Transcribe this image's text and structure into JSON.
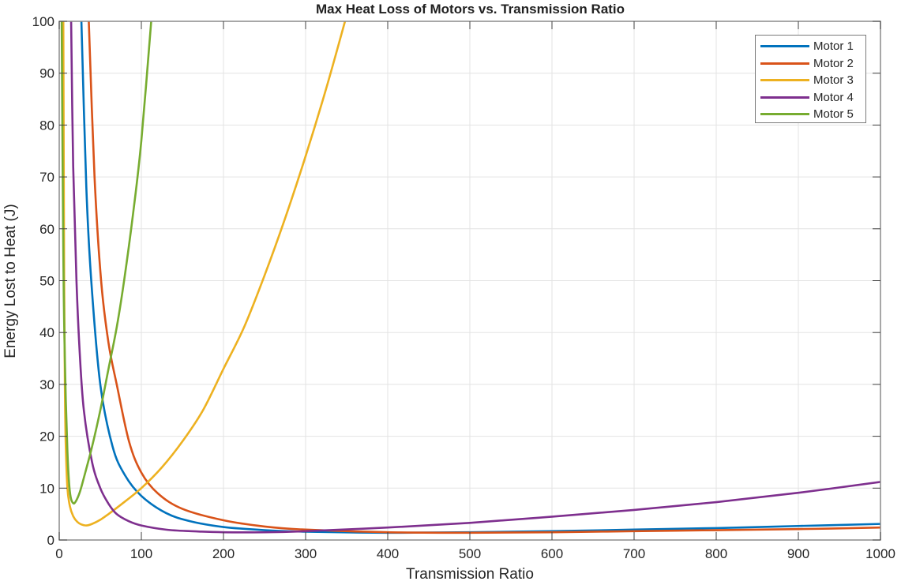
{
  "chart_data": {
    "type": "line",
    "title": "Max Heat Loss of Motors vs. Transmission Ratio",
    "xlabel": "Transmission Ratio",
    "ylabel": "Energy Lost to Heat (J)",
    "xlim": [
      0,
      1000
    ],
    "ylim": [
      0,
      100
    ],
    "xticks": [
      0,
      100,
      200,
      300,
      400,
      500,
      600,
      700,
      800,
      900,
      1000
    ],
    "yticks": [
      0,
      10,
      20,
      30,
      40,
      50,
      60,
      70,
      80,
      90,
      100
    ],
    "grid": true,
    "legend_position": "northeast",
    "series": [
      {
        "name": "Motor 1",
        "color": "#0072BD",
        "x": [
          27,
          33,
          39,
          50,
          65,
          80,
          100,
          130,
          160,
          200,
          250,
          300,
          400,
          500,
          600,
          700,
          800,
          900,
          1000
        ],
        "y": [
          100,
          68,
          50,
          30,
          18,
          12.5,
          8.5,
          5.2,
          3.6,
          2.5,
          1.9,
          1.6,
          1.4,
          1.5,
          1.7,
          2.0,
          2.3,
          2.7,
          3.1
        ]
      },
      {
        "name": "Motor 2",
        "color": "#D95319",
        "x": [
          36,
          43,
          51,
          60,
          70,
          85,
          100,
          120,
          150,
          200,
          250,
          300,
          400,
          500,
          600,
          700,
          800,
          900,
          1000
        ],
        "y": [
          100,
          70,
          50,
          38,
          30,
          19,
          13,
          9,
          6,
          3.8,
          2.6,
          2.0,
          1.5,
          1.4,
          1.5,
          1.7,
          1.9,
          2.1,
          2.4
        ]
      },
      {
        "name": "Motor 3",
        "color": "#EDB120",
        "x": [
          5,
          6,
          7,
          8,
          10,
          13,
          17,
          22,
          27,
          33,
          40,
          50,
          60,
          75,
          100,
          125,
          150,
          175,
          200,
          225,
          250,
          275,
          300,
          325,
          348
        ],
        "y": [
          100,
          50,
          28,
          18,
          10,
          6.5,
          4.6,
          3.5,
          3.0,
          2.8,
          3.1,
          3.9,
          5,
          6.8,
          10,
          14,
          19,
          25,
          33,
          41,
          51,
          62,
          74,
          87,
          100
        ]
      },
      {
        "name": "Motor 4",
        "color": "#7E2F8E",
        "x": [
          14.5,
          17,
          21,
          25,
          30,
          40,
          50,
          60,
          70,
          85,
          100,
          130,
          160,
          200,
          250,
          300,
          400,
          500,
          600,
          700,
          800,
          900,
          1000
        ],
        "y": [
          100,
          72,
          50,
          36,
          25,
          15,
          10,
          7,
          5,
          3.6,
          2.8,
          2.0,
          1.7,
          1.5,
          1.5,
          1.7,
          2.4,
          3.3,
          4.5,
          5.8,
          7.3,
          9.1,
          11.2
        ]
      },
      {
        "name": "Motor 5",
        "color": "#77AC30",
        "x": [
          3,
          4,
          5,
          6,
          8,
          10,
          12,
          14,
          17,
          20,
          25,
          30,
          40,
          50,
          60,
          70,
          79,
          90,
          100,
          112
        ],
        "y": [
          100,
          75,
          55,
          42,
          27,
          17,
          11,
          8.2,
          7.1,
          7.4,
          9.2,
          12,
          18,
          25,
          33,
          41,
          50,
          63,
          77,
          100
        ]
      }
    ]
  }
}
